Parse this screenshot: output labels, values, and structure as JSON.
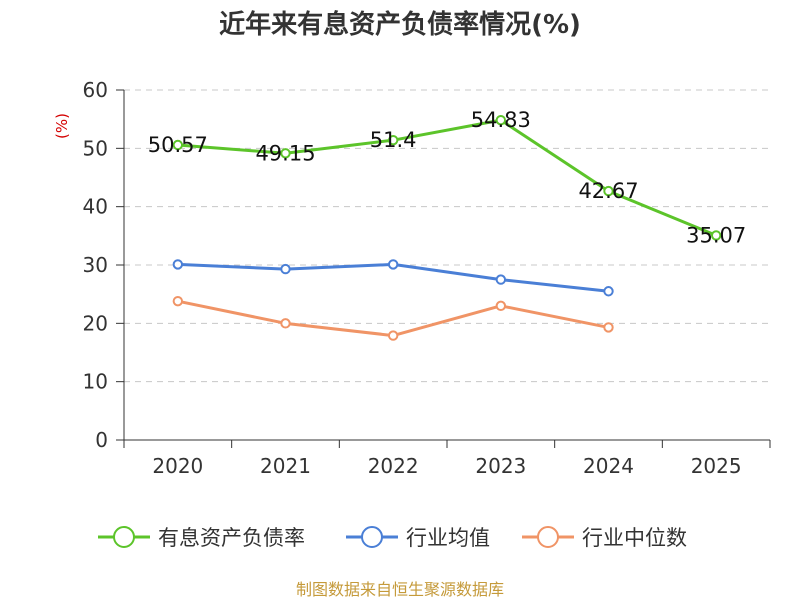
{
  "chart_data": {
    "type": "line",
    "title": "近年来有息资产负债率情况(%)",
    "ylabel": "(%)",
    "xlabel": "",
    "categories": [
      "2020",
      "2021",
      "2022",
      "2023",
      "2024",
      "2025"
    ],
    "ylim": [
      0,
      60
    ],
    "yticks": [
      0,
      10,
      20,
      30,
      40,
      50,
      60
    ],
    "grid": true,
    "legend_position": "bottom",
    "series": [
      {
        "name": "有息资产负债率",
        "color": "#5cc42a",
        "values": [
          50.57,
          49.15,
          51.4,
          54.83,
          42.67,
          35.07
        ],
        "labels": [
          "50.57",
          "49.15",
          "51.4",
          "54.83",
          "42.67",
          "35.07"
        ]
      },
      {
        "name": "行业均值",
        "color": "#4a7fd6",
        "values": [
          30.1,
          29.3,
          30.1,
          27.5,
          25.5,
          null
        ]
      },
      {
        "name": "行业中位数",
        "color": "#f09466",
        "values": [
          23.8,
          20.0,
          17.9,
          23.0,
          19.3,
          null
        ]
      }
    ]
  },
  "source": "制图数据来自恒生聚源数据库"
}
